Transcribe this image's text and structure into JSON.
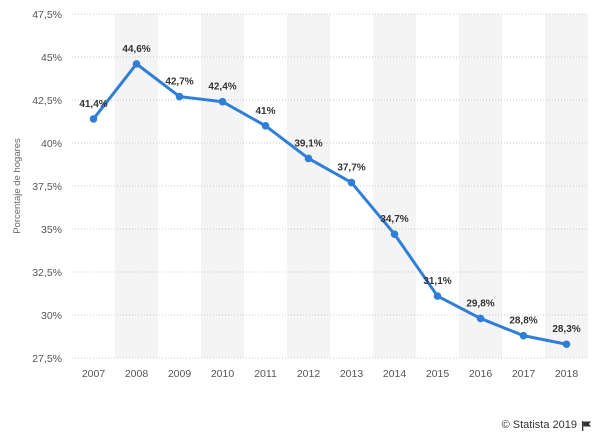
{
  "chart_data": {
    "type": "line",
    "title": "",
    "xlabel": "",
    "ylabel": "Porcentaje de hogares",
    "categories": [
      "2007",
      "2008",
      "2009",
      "2010",
      "2011",
      "2012",
      "2013",
      "2014",
      "2015",
      "2016",
      "2017",
      "2018"
    ],
    "series": [
      {
        "name": "Porcentaje de hogares",
        "values": [
          41.4,
          44.6,
          42.7,
          42.4,
          41,
          39.1,
          37.7,
          34.7,
          31.1,
          29.8,
          28.8,
          28.3
        ],
        "labels": [
          "41,4%",
          "44,6%",
          "42,7%",
          "42,4%",
          "41%",
          "39,1%",
          "37,7%",
          "34,7%",
          "31,1%",
          "29,8%",
          "28,8%",
          "28,3%"
        ]
      }
    ],
    "ylim": [
      27.5,
      47.5
    ],
    "yticks": [
      27.5,
      30,
      32.5,
      35,
      37.5,
      40,
      42.5,
      45,
      47.5
    ],
    "ytick_labels": [
      "27,5%",
      "30%",
      "32,5%",
      "35%",
      "37,5%",
      "40%",
      "42,5%",
      "45%",
      "47,5%"
    ],
    "grid": true,
    "line_color": "#2f7ed8"
  },
  "credit": {
    "text": "© Statista 2019",
    "icon": "flag-icon"
  }
}
